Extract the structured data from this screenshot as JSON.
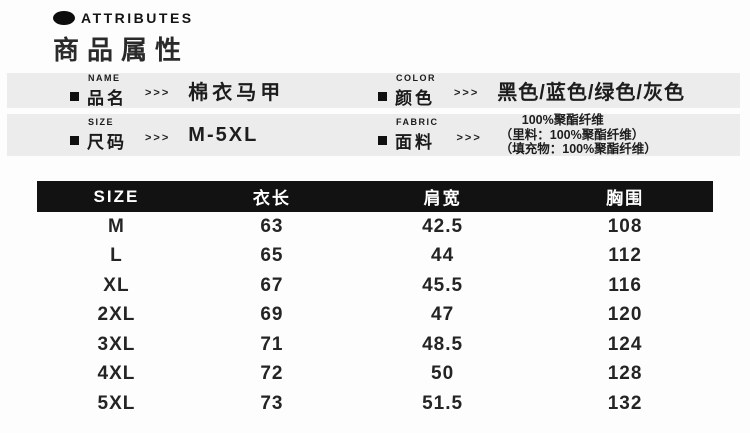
{
  "header": {
    "eyebrow": "ATTRIBUTES",
    "title": "商品属性"
  },
  "attributes": [
    {
      "label_en": "NAME",
      "label_zh": "品名",
      "arrows": ">>>",
      "value": "棉衣马甲"
    },
    {
      "label_en": "COLOR",
      "label_zh": "颜色",
      "arrows": ">>>",
      "value": "黑色/蓝色/绿色/灰色"
    },
    {
      "label_en": "SIZE",
      "label_zh": "尺码",
      "arrows": ">>>",
      "value": "M-5XL"
    },
    {
      "label_en": "FABRIC",
      "label_zh": "面料",
      "arrows": ">>>",
      "value_lines": [
        "100%聚酯纤维",
        "（里料：100%聚酯纤维）",
        "（填充物：100%聚酯纤维）"
      ]
    }
  ],
  "size_table": {
    "columns": [
      "SIZE",
      "衣长",
      "肩宽",
      "胸围"
    ],
    "rows": [
      [
        "M",
        "63",
        "42.5",
        "108"
      ],
      [
        "L",
        "65",
        "44",
        "112"
      ],
      [
        "XL",
        "67",
        "45.5",
        "116"
      ],
      [
        "2XL",
        "69",
        "47",
        "120"
      ],
      [
        "3XL",
        "71",
        "48.5",
        "124"
      ],
      [
        "4XL",
        "72",
        "50",
        "128"
      ],
      [
        "5XL",
        "73",
        "51.5",
        "132"
      ]
    ]
  },
  "colors": {
    "attribute_bar_bg": "#ececec",
    "table_header_bg": "#121212",
    "table_header_text": "#ffffff",
    "text": "#1c1c1c"
  }
}
